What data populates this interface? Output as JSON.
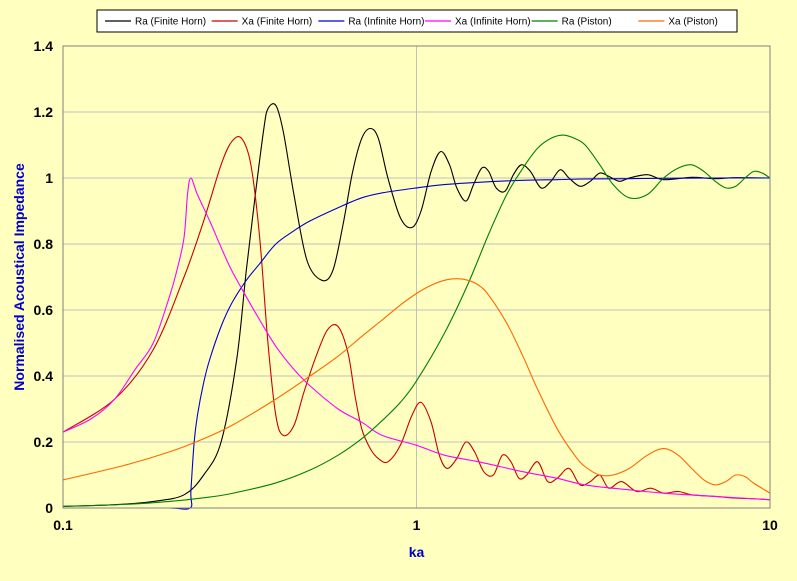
{
  "chart_data": {
    "type": "line",
    "title": "",
    "xlabel": "ka",
    "ylabel": "Normalised Acoustical Impedance",
    "x_scale": "log",
    "xlim": [
      0.1,
      10
    ],
    "ylim": [
      0,
      1.4
    ],
    "grid": true,
    "legend_position": "top",
    "x_ticks": [
      "0.1",
      "1",
      "10"
    ],
    "y_ticks": [
      "0",
      "0.2",
      "0.4",
      "0.6",
      "0.8",
      "1",
      "1.2",
      "1.4"
    ],
    "colors": {
      "background": "#ffffc0",
      "plot_area": "#ffffc0",
      "grid": "#c0c0c0",
      "axis_title": "#0000cc"
    },
    "series": [
      {
        "name": "Ra (Finite Horn)",
        "color": "#000000",
        "x": [
          0.1,
          0.14,
          0.18,
          0.22,
          0.25,
          0.28,
          0.31,
          0.33,
          0.35,
          0.37,
          0.38,
          0.4,
          0.42,
          0.45,
          0.49,
          0.54,
          0.58,
          0.62,
          0.66,
          0.7,
          0.74,
          0.78,
          0.83,
          0.9,
          0.97,
          1.03,
          1.1,
          1.17,
          1.24,
          1.3,
          1.38,
          1.45,
          1.53,
          1.6,
          1.68,
          1.78,
          1.88,
          1.98,
          2.1,
          2.25,
          2.4,
          2.55,
          2.7,
          2.9,
          3.1,
          3.3,
          3.5,
          3.75,
          4.0,
          4.5,
          5.0,
          6.0,
          7.0,
          8.0,
          10.0
        ],
        "y": [
          0.005,
          0.01,
          0.02,
          0.04,
          0.1,
          0.2,
          0.45,
          0.72,
          0.95,
          1.15,
          1.21,
          1.22,
          1.14,
          0.95,
          0.75,
          0.69,
          0.72,
          0.86,
          1.02,
          1.12,
          1.15,
          1.12,
          1.0,
          0.88,
          0.85,
          0.9,
          1.02,
          1.08,
          1.04,
          0.97,
          0.93,
          0.98,
          1.03,
          1.02,
          0.97,
          0.96,
          1.01,
          1.04,
          1.02,
          0.97,
          0.99,
          1.025,
          1.0,
          0.975,
          0.99,
          1.015,
          1.005,
          0.99,
          1.0,
          1.01,
          0.995,
          1.002,
          0.998,
          1.001,
          1.0
        ]
      },
      {
        "name": "Xa (Finite Horn)",
        "color": "#cc0000",
        "x": [
          0.1,
          0.14,
          0.18,
          0.22,
          0.25,
          0.28,
          0.3,
          0.32,
          0.34,
          0.36,
          0.38,
          0.4,
          0.42,
          0.45,
          0.48,
          0.52,
          0.56,
          0.6,
          0.64,
          0.67,
          0.7,
          0.74,
          0.78,
          0.83,
          0.9,
          0.97,
          1.03,
          1.1,
          1.16,
          1.22,
          1.3,
          1.38,
          1.46,
          1.55,
          1.65,
          1.75,
          1.85,
          1.95,
          2.05,
          2.2,
          2.35,
          2.5,
          2.7,
          2.9,
          3.1,
          3.3,
          3.5,
          3.8,
          4.2,
          4.6,
          5.0,
          5.5,
          6.0,
          7.0,
          8.0,
          9.0,
          10.0
        ],
        "y": [
          0.23,
          0.33,
          0.48,
          0.7,
          0.87,
          1.04,
          1.11,
          1.12,
          1.04,
          0.82,
          0.5,
          0.28,
          0.22,
          0.25,
          0.35,
          0.46,
          0.54,
          0.55,
          0.47,
          0.34,
          0.24,
          0.18,
          0.15,
          0.14,
          0.19,
          0.28,
          0.32,
          0.26,
          0.16,
          0.12,
          0.15,
          0.2,
          0.17,
          0.11,
          0.1,
          0.16,
          0.14,
          0.09,
          0.1,
          0.14,
          0.08,
          0.09,
          0.12,
          0.07,
          0.08,
          0.1,
          0.06,
          0.08,
          0.05,
          0.06,
          0.045,
          0.05,
          0.04,
          0.035,
          0.03,
          0.028,
          0.025
        ]
      },
      {
        "name": "Ra (Infinite Horn)",
        "color": "#0000cc",
        "x": [
          0.1,
          0.15,
          0.2,
          0.229,
          0.23,
          0.235,
          0.24,
          0.25,
          0.26,
          0.28,
          0.3,
          0.33,
          0.36,
          0.4,
          0.45,
          0.5,
          0.6,
          0.7,
          0.8,
          1.0,
          1.2,
          1.5,
          2.0,
          2.5,
          3.0,
          4.0,
          5.0,
          7.0,
          10.0
        ],
        "y": [
          0,
          0,
          0,
          0,
          0.05,
          0.2,
          0.28,
          0.38,
          0.45,
          0.55,
          0.62,
          0.69,
          0.74,
          0.8,
          0.84,
          0.87,
          0.91,
          0.94,
          0.955,
          0.97,
          0.98,
          0.987,
          0.993,
          0.995,
          0.997,
          0.998,
          0.999,
          1.0,
          1.0
        ]
      },
      {
        "name": "Xa (Infinite Horn)",
        "color": "#ff00ff",
        "x": [
          0.1,
          0.12,
          0.14,
          0.16,
          0.18,
          0.2,
          0.21,
          0.22,
          0.225,
          0.23,
          0.24,
          0.26,
          0.28,
          0.3,
          0.33,
          0.36,
          0.4,
          0.45,
          0.5,
          0.6,
          0.7,
          0.8,
          1.0,
          1.2,
          1.5,
          2.0,
          2.5,
          3.0,
          4.0,
          5.0,
          7.0,
          10.0
        ],
        "y": [
          0.23,
          0.27,
          0.33,
          0.42,
          0.5,
          0.64,
          0.72,
          0.82,
          0.95,
          1.0,
          0.95,
          0.87,
          0.79,
          0.72,
          0.64,
          0.57,
          0.49,
          0.42,
          0.37,
          0.3,
          0.26,
          0.22,
          0.19,
          0.16,
          0.14,
          0.11,
          0.09,
          0.07,
          0.055,
          0.045,
          0.035,
          0.025
        ]
      },
      {
        "name": "Ra (Piston)",
        "color": "#008000",
        "x": [
          0.1,
          0.15,
          0.2,
          0.25,
          0.3,
          0.4,
          0.5,
          0.6,
          0.7,
          0.8,
          0.9,
          1.0,
          1.2,
          1.4,
          1.6,
          1.8,
          2.0,
          2.2,
          2.4,
          2.6,
          2.8,
          3.0,
          3.3,
          3.6,
          4.0,
          4.5,
          5.0,
          5.5,
          6.0,
          6.5,
          7.0,
          7.5,
          8.0,
          8.5,
          9.0,
          9.5,
          10.0
        ],
        "y": [
          0.005,
          0.011,
          0.02,
          0.031,
          0.044,
          0.076,
          0.115,
          0.16,
          0.21,
          0.265,
          0.32,
          0.385,
          0.53,
          0.68,
          0.83,
          0.95,
          1.03,
          1.09,
          1.12,
          1.13,
          1.12,
          1.1,
          1.04,
          0.98,
          0.94,
          0.95,
          1.0,
          1.03,
          1.04,
          1.02,
          0.99,
          0.97,
          0.975,
          1.0,
          1.02,
          1.015,
          1.0
        ]
      },
      {
        "name": "Xa (Piston)",
        "color": "#ff6600",
        "x": [
          0.1,
          0.15,
          0.2,
          0.25,
          0.3,
          0.4,
          0.5,
          0.6,
          0.7,
          0.8,
          0.9,
          1.0,
          1.1,
          1.2,
          1.3,
          1.4,
          1.5,
          1.6,
          1.8,
          2.0,
          2.2,
          2.5,
          2.8,
          3.0,
          3.3,
          3.6,
          4.0,
          4.5,
          5.0,
          5.5,
          6.0,
          6.5,
          7.0,
          7.5,
          8.0,
          8.5,
          9.0,
          10.0
        ],
        "y": [
          0.085,
          0.13,
          0.17,
          0.21,
          0.25,
          0.33,
          0.4,
          0.46,
          0.52,
          0.57,
          0.615,
          0.65,
          0.675,
          0.69,
          0.695,
          0.69,
          0.675,
          0.645,
          0.56,
          0.46,
          0.36,
          0.24,
          0.16,
          0.125,
          0.1,
          0.1,
          0.12,
          0.16,
          0.18,
          0.16,
          0.12,
          0.085,
          0.07,
          0.08,
          0.1,
          0.095,
          0.075,
          0.045
        ]
      }
    ]
  }
}
